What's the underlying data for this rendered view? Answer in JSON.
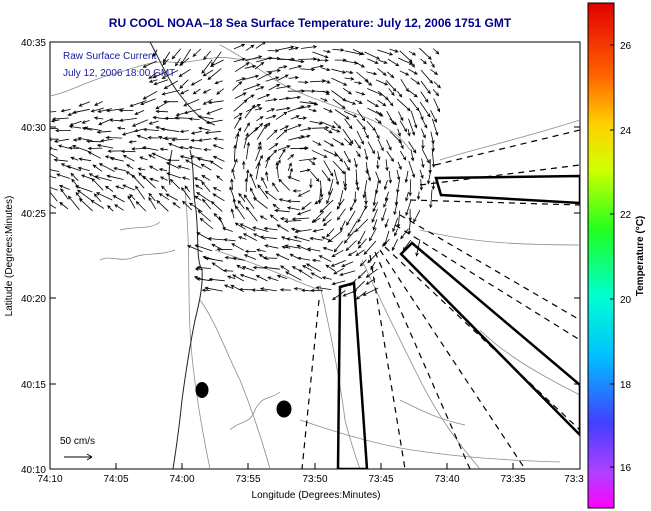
{
  "title": "RU COOL  NOAA–18  Sea Surface Temperature:  July 12, 2006 1751 GMT",
  "inset_line1": "Raw Surface Current",
  "inset_line2": "July 12, 2006 18:00 GMT",
  "ylabel": "Latitude (Degrees:Minutes)",
  "xlabel": "Longitude (Degrees:Minutes)",
  "scale_label": "50 cm/s",
  "colorbar_label": "Temperature (°C)",
  "x_ticks": [
    "74:10",
    "74:05",
    "74:00",
    "73:55",
    "73:50",
    "73:45",
    "73:40",
    "73:35",
    "73:3"
  ],
  "y_ticks": [
    "40:35",
    "40:30",
    "40:25",
    "40:20",
    "40:15",
    "40:10"
  ],
  "colorbar_ticks": [
    "26",
    "24",
    "22",
    "20",
    "18",
    "16"
  ],
  "colors": {
    "title": "#00008b",
    "inset_text": "#1a1aa0",
    "arrows": "#000000",
    "contours": "#8c8c8c"
  }
}
